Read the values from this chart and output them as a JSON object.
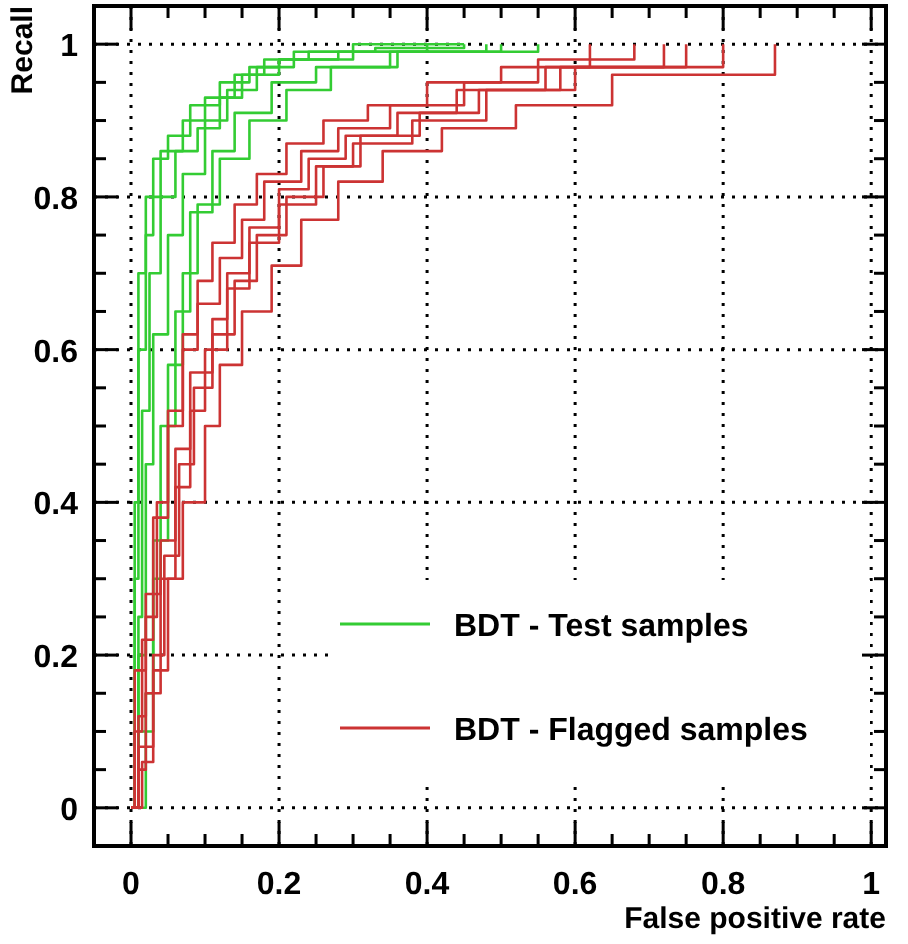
{
  "chart_data": {
    "type": "step",
    "xlabel": "False positive rate",
    "ylabel": "Recall",
    "xlim": [
      -0.05,
      1.02
    ],
    "ylim": [
      -0.05,
      1.05
    ],
    "xticks": [
      0,
      {
        "value": 0.05,
        "label": null
      },
      {
        "value": 0.1,
        "label": null
      },
      {
        "value": 0.15,
        "label": null
      },
      0.2,
      {
        "value": 0.25,
        "label": null
      },
      {
        "value": 0.3,
        "label": null
      },
      {
        "value": 0.35,
        "label": null
      },
      0.4,
      {
        "value": 0.45,
        "label": null
      },
      {
        "value": 0.5,
        "label": null
      },
      {
        "value": 0.55,
        "label": null
      },
      0.6,
      {
        "value": 0.65,
        "label": null
      },
      {
        "value": 0.7,
        "label": null
      },
      {
        "value": 0.75,
        "label": null
      },
      0.8,
      {
        "value": 0.85,
        "label": null
      },
      {
        "value": 0.9,
        "label": null
      },
      {
        "value": 0.95,
        "label": null
      },
      1
    ],
    "yticks": [
      0,
      {
        "value": 0.05,
        "label": null
      },
      {
        "value": 0.1,
        "label": null
      },
      {
        "value": 0.15,
        "label": null
      },
      0.2,
      {
        "value": 0.25,
        "label": null
      },
      {
        "value": 0.3,
        "label": null
      },
      {
        "value": 0.35,
        "label": null
      },
      0.4,
      {
        "value": 0.45,
        "label": null
      },
      {
        "value": 0.5,
        "label": null
      },
      {
        "value": 0.55,
        "label": null
      },
      0.6,
      {
        "value": 0.65,
        "label": null
      },
      {
        "value": 0.7,
        "label": null
      },
      {
        "value": 0.75,
        "label": null
      },
      0.8,
      {
        "value": 0.85,
        "label": null
      },
      {
        "value": 0.9,
        "label": null
      },
      {
        "value": 0.95,
        "label": null
      },
      1
    ],
    "grid": true,
    "legend": "bottom right",
    "line_style": "solid",
    "series": [
      {
        "name": "BDT - Test samples",
        "color": "#33cc33",
        "x": [
          0,
          0.01,
          0.02,
          0.03,
          0.05,
          0.07,
          0.1,
          0.13,
          0.17,
          0.22,
          0.3,
          0.45
        ],
        "values": [
          0,
          0.2,
          0.45,
          0.62,
          0.75,
          0.83,
          0.9,
          0.94,
          0.97,
          0.99,
          1,
          1
        ]
      },
      {
        "color": "#33cc33",
        "x": [
          0,
          0.005,
          0.01,
          0.02,
          0.03,
          0.05,
          0.08,
          0.12,
          0.16,
          0.2,
          0.28,
          0.4
        ],
        "values": [
          0,
          0.3,
          0.6,
          0.75,
          0.85,
          0.88,
          0.92,
          0.95,
          0.97,
          0.98,
          0.99,
          1
        ]
      },
      {
        "color": "#33cc33",
        "x": [
          0,
          0.02,
          0.03,
          0.04,
          0.06,
          0.08,
          0.11,
          0.14,
          0.19,
          0.25,
          0.35,
          0.5
        ],
        "values": [
          0,
          0.15,
          0.3,
          0.5,
          0.65,
          0.78,
          0.86,
          0.91,
          0.95,
          0.97,
          0.99,
          1
        ]
      },
      {
        "color": "#33cc33",
        "x": [
          0,
          0.01,
          0.015,
          0.025,
          0.04,
          0.06,
          0.09,
          0.12,
          0.15,
          0.2,
          0.3,
          0.55
        ],
        "values": [
          0,
          0.25,
          0.52,
          0.7,
          0.8,
          0.86,
          0.89,
          0.93,
          0.96,
          0.98,
          0.99,
          1
        ]
      },
      {
        "color": "#33cc33",
        "x": [
          0,
          0.01,
          0.03,
          0.05,
          0.07,
          0.09,
          0.12,
          0.16,
          0.21,
          0.27,
          0.36,
          0.48
        ],
        "values": [
          0,
          0.1,
          0.35,
          0.58,
          0.7,
          0.79,
          0.85,
          0.9,
          0.94,
          0.97,
          0.99,
          1
        ]
      },
      {
        "color": "#33cc33",
        "x": [
          0,
          0.005,
          0.01,
          0.02,
          0.04,
          0.07,
          0.1,
          0.14,
          0.18,
          0.24,
          0.33,
          0.45
        ],
        "values": [
          0,
          0.4,
          0.7,
          0.8,
          0.86,
          0.9,
          0.93,
          0.96,
          0.98,
          0.99,
          0.995,
          1
        ]
      },
      {
        "name": "BDT - Flagged samples",
        "color": "#cc3333",
        "x": [
          0,
          0.01,
          0.02,
          0.04,
          0.06,
          0.08,
          0.1,
          0.13,
          0.16,
          0.2,
          0.25,
          0.3,
          0.38,
          0.48,
          0.6,
          0.75
        ],
        "values": [
          0,
          0.05,
          0.15,
          0.3,
          0.42,
          0.52,
          0.6,
          0.68,
          0.74,
          0.79,
          0.84,
          0.87,
          0.9,
          0.94,
          0.97,
          1
        ]
      },
      {
        "color": "#cc3333",
        "x": [
          0,
          0.005,
          0.015,
          0.03,
          0.05,
          0.07,
          0.09,
          0.12,
          0.15,
          0.18,
          0.23,
          0.28,
          0.35,
          0.45,
          0.55,
          0.68
        ],
        "values": [
          0,
          0.1,
          0.22,
          0.38,
          0.5,
          0.6,
          0.66,
          0.72,
          0.77,
          0.82,
          0.86,
          0.89,
          0.92,
          0.95,
          0.98,
          1
        ]
      },
      {
        "color": "#cc3333",
        "x": [
          0,
          0.01,
          0.03,
          0.05,
          0.07,
          0.1,
          0.12,
          0.15,
          0.19,
          0.23,
          0.28,
          0.34,
          0.42,
          0.52,
          0.65,
          0.87
        ],
        "values": [
          0,
          0.08,
          0.18,
          0.3,
          0.4,
          0.5,
          0.58,
          0.65,
          0.71,
          0.77,
          0.82,
          0.86,
          0.89,
          0.92,
          0.96,
          1
        ]
      },
      {
        "color": "#cc3333",
        "x": [
          0,
          0.01,
          0.02,
          0.035,
          0.05,
          0.07,
          0.09,
          0.11,
          0.14,
          0.17,
          0.21,
          0.26,
          0.32,
          0.4,
          0.5,
          0.62
        ],
        "values": [
          0,
          0.12,
          0.25,
          0.4,
          0.52,
          0.62,
          0.69,
          0.74,
          0.79,
          0.83,
          0.87,
          0.9,
          0.92,
          0.95,
          0.97,
          1
        ]
      },
      {
        "color": "#cc3333",
        "x": [
          0,
          0.015,
          0.03,
          0.045,
          0.065,
          0.085,
          0.11,
          0.14,
          0.17,
          0.21,
          0.26,
          0.31,
          0.39,
          0.47,
          0.58,
          0.72
        ],
        "values": [
          0,
          0.06,
          0.2,
          0.33,
          0.45,
          0.55,
          0.62,
          0.69,
          0.75,
          0.8,
          0.84,
          0.88,
          0.91,
          0.94,
          0.97,
          1
        ]
      },
      {
        "color": "#cc3333",
        "x": [
          0,
          0.005,
          0.02,
          0.04,
          0.06,
          0.08,
          0.11,
          0.13,
          0.16,
          0.2,
          0.24,
          0.29,
          0.36,
          0.44,
          0.56,
          0.8
        ],
        "values": [
          0,
          0.18,
          0.28,
          0.35,
          0.47,
          0.57,
          0.64,
          0.7,
          0.76,
          0.81,
          0.85,
          0.88,
          0.91,
          0.94,
          0.97,
          1
        ]
      }
    ]
  }
}
